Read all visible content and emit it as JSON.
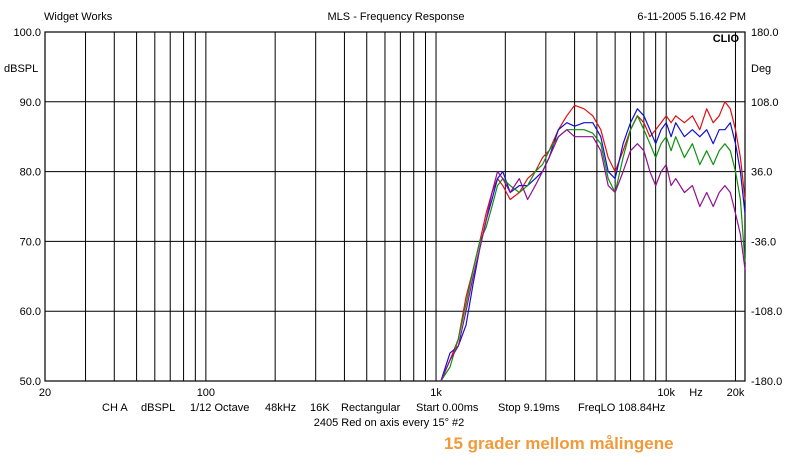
{
  "header": {
    "left": "Widget Works",
    "center": "MLS - Frequency Response",
    "right": "6-11-2005 5.16.42 PM"
  },
  "chart_data": {
    "type": "line",
    "title": "MLS - Frequency Response",
    "ylabel": "dBSPL",
    "y2label": "Deg",
    "xscale": "log",
    "xlim": [
      20,
      22000
    ],
    "ylim": [
      50,
      100
    ],
    "y2lim": [
      -180,
      180
    ],
    "grid": true,
    "x_ticks": [
      {
        "value": 20,
        "label": "20"
      },
      {
        "value": 100,
        "label": "100"
      },
      {
        "value": 1000,
        "label": "1k"
      },
      {
        "value": 10000,
        "label": "10k"
      },
      {
        "value": 20000,
        "label": "20k"
      }
    ],
    "x_unit_label": "Hz",
    "y_ticks": [
      "50.0",
      "60.0",
      "70.0",
      "80.0",
      "90.0",
      "100.0"
    ],
    "y2_ticks": [
      "-180.0",
      "-108.0",
      "-36.0",
      "36.0",
      "108.0",
      "180.0"
    ],
    "badge": "CLIO",
    "series": [
      {
        "color": "#e01010",
        "x": [
          1050,
          1150,
          1250,
          1350,
          1450,
          1550,
          1650,
          1750,
          1850,
          1950,
          2100,
          2300,
          2500,
          2700,
          2900,
          3100,
          3400,
          3700,
          4000,
          4400,
          4800,
          5200,
          5600,
          6000,
          6500,
          7000,
          7500,
          8000,
          8500,
          9000,
          9500,
          10000,
          10500,
          11000,
          12000,
          13000,
          14000,
          15000,
          16000,
          17000,
          18000,
          19000,
          20000,
          21000,
          22000
        ],
        "y": [
          50,
          53,
          56,
          62,
          66,
          70,
          74,
          77,
          79,
          78,
          76,
          77,
          79,
          80,
          82,
          83,
          86,
          88,
          89.5,
          89,
          88,
          86,
          82,
          80,
          83,
          86,
          88,
          87,
          85,
          86,
          87,
          88,
          87,
          88,
          87,
          88,
          86,
          89,
          87,
          88,
          90,
          89,
          86,
          82,
          76
        ]
      },
      {
        "color": "#1010d0",
        "x": [
          1050,
          1150,
          1250,
          1350,
          1450,
          1550,
          1650,
          1750,
          1850,
          1950,
          2100,
          2300,
          2500,
          2700,
          2900,
          3100,
          3400,
          3700,
          4000,
          4400,
          4800,
          5200,
          5600,
          6000,
          6500,
          7000,
          7500,
          8000,
          8500,
          9000,
          9500,
          10000,
          10500,
          11000,
          12000,
          13000,
          14000,
          15000,
          16000,
          17000,
          18000,
          19000,
          20000,
          21000,
          22000
        ],
        "y": [
          50,
          54,
          55,
          58,
          64,
          69,
          73,
          76,
          79,
          80,
          77,
          78,
          78,
          79,
          80,
          82,
          86,
          87,
          86.5,
          87,
          87,
          85,
          80,
          79,
          84,
          87,
          89,
          88,
          86,
          84,
          86,
          87,
          85,
          87,
          85,
          86,
          85,
          86,
          84,
          86,
          86,
          87,
          84,
          80,
          74
        ]
      },
      {
        "color": "#109010",
        "x": [
          1050,
          1150,
          1250,
          1350,
          1450,
          1550,
          1650,
          1750,
          1850,
          1950,
          2100,
          2300,
          2500,
          2700,
          2900,
          3100,
          3400,
          3700,
          4000,
          4400,
          4800,
          5200,
          5600,
          6000,
          6500,
          7000,
          7500,
          8000,
          8500,
          9000,
          9500,
          10000,
          10500,
          11000,
          12000,
          13000,
          14000,
          15000,
          16000,
          17000,
          18000,
          19000,
          20000,
          21000,
          22000
        ],
        "y": [
          50,
          52,
          56,
          61,
          66,
          70,
          72,
          75,
          78,
          79,
          78,
          77,
          78,
          80,
          81,
          83,
          85,
          86,
          86,
          86,
          85.5,
          84,
          79,
          77,
          82,
          86,
          88,
          86,
          84,
          82,
          84,
          85,
          83,
          85,
          82,
          84,
          81,
          83,
          81,
          83,
          84,
          83,
          80,
          76,
          67
        ]
      },
      {
        "color": "#901090",
        "x": [
          1050,
          1150,
          1250,
          1350,
          1450,
          1550,
          1650,
          1750,
          1850,
          1950,
          2100,
          2300,
          2500,
          2700,
          2900,
          3100,
          3400,
          3700,
          4000,
          4400,
          4800,
          5200,
          5600,
          6000,
          6500,
          7000,
          7500,
          8000,
          8500,
          9000,
          9500,
          10000,
          10500,
          11000,
          12000,
          13000,
          14000,
          15000,
          16000,
          17000,
          18000,
          19000,
          20000,
          21000,
          22000
        ],
        "y": [
          50,
          53,
          55,
          60,
          65,
          69,
          73,
          77,
          80,
          79,
          77,
          79,
          76,
          78,
          80,
          82,
          85,
          86,
          85,
          85,
          85,
          83,
          78,
          77,
          80,
          83,
          84,
          83,
          80,
          78,
          80,
          81,
          78,
          79,
          77,
          78,
          75,
          77,
          75,
          77,
          78,
          77,
          74,
          71,
          66
        ]
      }
    ]
  },
  "footer": {
    "settings_items": [
      "CH A",
      "dBSPL",
      "1/12 Octave",
      "48kHz",
      "16K",
      "Rectangular",
      "Start 0.00ms",
      "Stop 9.19ms",
      "FreqLO 108.84Hz"
    ],
    "subtitle": "2405 Red on axis every 15° #2"
  },
  "annotation": "15 grader mellom målingene"
}
